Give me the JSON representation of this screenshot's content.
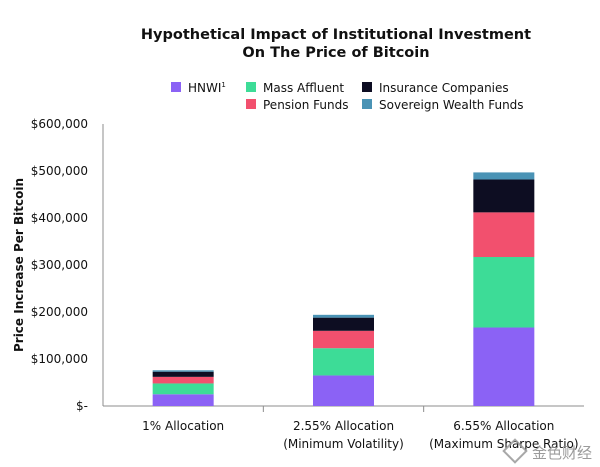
{
  "chart_data": {
    "type": "bar",
    "stacked": true,
    "title_lines": [
      "Hypothetical Impact of Institutional Investment",
      "On The Price of Bitcoin"
    ],
    "ylabel": "Price Increase Per Bitcoin",
    "ylim": [
      0,
      600000
    ],
    "y_ticks": [
      {
        "value": 0,
        "label": "$-"
      },
      {
        "value": 100000,
        "label": "$100,000"
      },
      {
        "value": 200000,
        "label": "$200,000"
      },
      {
        "value": 300000,
        "label": "$300,000"
      },
      {
        "value": 400000,
        "label": "$400,000"
      },
      {
        "value": 500000,
        "label": "$500,000"
      },
      {
        "value": 600000,
        "label": "$600,000"
      }
    ],
    "categories": [
      {
        "line1": "1% Allocation",
        "line2": ""
      },
      {
        "line1": "2.55% Allocation",
        "line2": "(Minimum Volatility)"
      },
      {
        "line1": "6.55% Allocation",
        "line2": "(Maximum Sharpe Ratio)"
      }
    ],
    "series": [
      {
        "name": "HNWI",
        "superscript": "1",
        "color": "#8b62f5",
        "values": [
          25000,
          65000,
          167000
        ]
      },
      {
        "name": "Mass Affluent",
        "color": "#3ddc97",
        "values": [
          23000,
          58000,
          150000
        ]
      },
      {
        "name": "Pension Funds",
        "color": "#f2506e",
        "values": [
          14000,
          37000,
          95000
        ]
      },
      {
        "name": "Insurance Companies",
        "color": "#0d0d22",
        "values": [
          11000,
          28000,
          70000
        ]
      },
      {
        "name": "Sovereign Wealth Funds",
        "color": "#4a93b5",
        "values": [
          3000,
          6000,
          15000
        ]
      }
    ],
    "legend_placement": "top-center",
    "grid": false
  },
  "watermark": {
    "text": "金色财经"
  }
}
